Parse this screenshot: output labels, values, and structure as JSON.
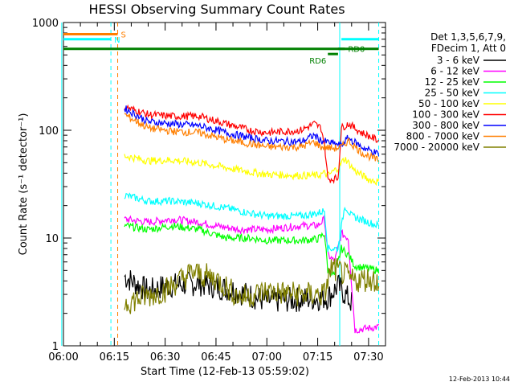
{
  "chart_data": {
    "type": "line",
    "title": "HESSI Observing Summary Count Rates",
    "xlabel": "Start Time (12-Feb-13 05:59:02)",
    "ylabel": "Count Rate (s⁻¹ detector⁻¹)",
    "yscale": "log",
    "xlim": [
      "06:00",
      "07:35"
    ],
    "ylim": [
      1,
      1000
    ],
    "xticks": [
      "06:00",
      "06:15",
      "06:30",
      "06:45",
      "07:00",
      "07:15",
      "07:30"
    ],
    "yticks": [
      "1",
      "10",
      "100",
      "1000"
    ],
    "legend_header": [
      "Det 1,3,5,6,7,9,",
      "FDecim 1, Att 0"
    ],
    "legend_placement": "right",
    "timestamp": "12-Feb-2013 10:44",
    "flags": [
      {
        "label": "S",
        "color": "#ff7f00",
        "x": [
          "06:00",
          "06:16"
        ],
        "y": 780
      },
      {
        "label": "N",
        "color": "#00ffff",
        "x": [
          "06:00",
          "06:14"
        ],
        "y": 700
      },
      {
        "label": "",
        "color": "#00ffff",
        "x": [
          "07:22",
          "07:33"
        ],
        "y": 700
      },
      {
        "label": "RD6",
        "color": "#008000",
        "x": [
          "07:18",
          "07:21"
        ],
        "y": 510
      },
      {
        "label": "RD0",
        "color": "#008000",
        "x": [
          "07:21",
          "07:23"
        ],
        "y": 570
      },
      {
        "label": "",
        "color": "#008000",
        "x": [
          "06:00",
          "07:33"
        ],
        "y": 570
      }
    ],
    "vlines": [
      {
        "x": "06:14",
        "color": "#00ffff",
        "style": "dashed"
      },
      {
        "x": "06:16",
        "color": "#ff7f00",
        "style": "dashed"
      },
      {
        "x": "07:21.5",
        "color": "#00ffff",
        "style": "solid"
      },
      {
        "x": "07:33",
        "color": "#00ffff",
        "style": "dashed"
      },
      {
        "x": "05:59.5",
        "color": "#00ffff",
        "style": "solid"
      }
    ],
    "series": [
      {
        "name": "3 - 6 keV",
        "color": "#000000",
        "points": [
          [
            "06:18",
            4.4
          ],
          [
            "06:25",
            3.2
          ],
          [
            "06:30",
            3.6
          ],
          [
            "06:40",
            3.8
          ],
          [
            "06:50",
            3.3
          ],
          [
            "07:00",
            2.6
          ],
          [
            "07:10",
            2.7
          ],
          [
            "07:18",
            2.8
          ],
          [
            "07:21",
            3.6
          ],
          [
            "07:25",
            2.5
          ]
        ]
      },
      {
        "name": "6 - 12 keV",
        "color": "#ff00ff",
        "points": [
          [
            "06:18",
            15
          ],
          [
            "06:25",
            14
          ],
          [
            "06:32",
            15
          ],
          [
            "06:40",
            14
          ],
          [
            "06:45",
            13
          ],
          [
            "06:52",
            12
          ],
          [
            "07:00",
            12
          ],
          [
            "07:10",
            13
          ],
          [
            "07:15",
            13
          ],
          [
            "07:17",
            15
          ],
          [
            "07:18",
            7
          ],
          [
            "07:20",
            6
          ],
          [
            "07:22",
            11
          ],
          [
            "07:24",
            10
          ],
          [
            "07:26",
            1.4
          ],
          [
            "07:33",
            1.5
          ]
        ]
      },
      {
        "name": "12 - 25 keV",
        "color": "#00ff00",
        "points": [
          [
            "06:18",
            13
          ],
          [
            "06:25",
            12
          ],
          [
            "06:32",
            13
          ],
          [
            "06:40",
            12
          ],
          [
            "06:48",
            10
          ],
          [
            "06:55",
            10
          ],
          [
            "07:00",
            9.5
          ],
          [
            "07:10",
            9.5
          ],
          [
            "07:15",
            9.8
          ],
          [
            "07:17",
            11
          ],
          [
            "07:18",
            5
          ],
          [
            "07:20",
            4.5
          ],
          [
            "07:22",
            8
          ],
          [
            "07:24",
            7
          ],
          [
            "07:26",
            5.5
          ],
          [
            "07:33",
            5
          ]
        ]
      },
      {
        "name": "25 - 50 keV",
        "color": "#00ffff",
        "points": [
          [
            "06:18",
            25
          ],
          [
            "06:25",
            22
          ],
          [
            "06:32",
            22
          ],
          [
            "06:40",
            21
          ],
          [
            "06:48",
            19
          ],
          [
            "06:55",
            17
          ],
          [
            "07:00",
            16
          ],
          [
            "07:10",
            16
          ],
          [
            "07:15",
            17
          ],
          [
            "07:17",
            18
          ],
          [
            "07:18",
            8
          ],
          [
            "07:21",
            8
          ],
          [
            "07:23",
            20
          ],
          [
            "07:25",
            16
          ],
          [
            "07:30",
            14
          ],
          [
            "07:33",
            13
          ]
        ]
      },
      {
        "name": "50 - 100 keV",
        "color": "#ffff00",
        "points": [
          [
            "06:18",
            58
          ],
          [
            "06:25",
            52
          ],
          [
            "06:32",
            53
          ],
          [
            "06:40",
            50
          ],
          [
            "06:48",
            45
          ],
          [
            "06:55",
            41
          ],
          [
            "07:00",
            39
          ],
          [
            "07:10",
            38
          ],
          [
            "07:15",
            38
          ],
          [
            "07:17",
            40
          ],
          [
            "07:18",
            38
          ],
          [
            "07:21",
            45
          ],
          [
            "07:23",
            55
          ],
          [
            "07:26",
            42
          ],
          [
            "07:30",
            35
          ],
          [
            "07:33",
            33
          ]
        ]
      },
      {
        "name": "100 - 300 keV",
        "color": "#ff0000",
        "points": [
          [
            "06:18",
            165
          ],
          [
            "06:25",
            140
          ],
          [
            "06:32",
            135
          ],
          [
            "06:40",
            135
          ],
          [
            "06:48",
            115
          ],
          [
            "06:55",
            100
          ],
          [
            "07:00",
            95
          ],
          [
            "07:10",
            100
          ],
          [
            "07:14",
            115
          ],
          [
            "07:16",
            105
          ],
          [
            "07:17",
            75
          ],
          [
            "07:18",
            35
          ],
          [
            "07:21",
            36
          ],
          [
            "07:22",
            105
          ],
          [
            "07:24",
            115
          ],
          [
            "07:28",
            95
          ],
          [
            "07:33",
            80
          ]
        ]
      },
      {
        "name": "300 - 800 keV",
        "color": "#0000ff",
        "points": [
          [
            "06:18",
            160
          ],
          [
            "06:25",
            120
          ],
          [
            "06:32",
            115
          ],
          [
            "06:40",
            110
          ],
          [
            "06:48",
            95
          ],
          [
            "06:55",
            85
          ],
          [
            "07:00",
            80
          ],
          [
            "07:10",
            78
          ],
          [
            "07:14",
            90
          ],
          [
            "07:16",
            80
          ],
          [
            "07:20",
            75
          ],
          [
            "07:22",
            72
          ],
          [
            "07:24",
            85
          ],
          [
            "07:28",
            70
          ],
          [
            "07:33",
            60
          ]
        ]
      },
      {
        "name": "800 - 7000 keV",
        "color": "#ff7f00",
        "points": [
          [
            "06:18",
            140
          ],
          [
            "06:25",
            105
          ],
          [
            "06:32",
            98
          ],
          [
            "06:40",
            95
          ],
          [
            "06:48",
            82
          ],
          [
            "06:55",
            75
          ],
          [
            "07:00",
            70
          ],
          [
            "07:10",
            70
          ],
          [
            "07:14",
            78
          ],
          [
            "07:16",
            70
          ],
          [
            "07:20",
            68
          ],
          [
            "07:22",
            70
          ],
          [
            "07:24",
            80
          ],
          [
            "07:28",
            62
          ],
          [
            "07:33",
            52
          ]
        ]
      },
      {
        "name": "7000 - 20000 keV",
        "color": "#808000",
        "points": [
          [
            "06:18",
            2.5
          ],
          [
            "06:25",
            2.9
          ],
          [
            "06:30",
            3.3
          ],
          [
            "06:38",
            4.8
          ],
          [
            "06:45",
            4.2
          ],
          [
            "06:52",
            2.8
          ],
          [
            "07:00",
            3.2
          ],
          [
            "07:10",
            3.0
          ],
          [
            "07:17",
            3.0
          ],
          [
            "07:19",
            5.3
          ],
          [
            "07:22",
            4.8
          ],
          [
            "07:25",
            4.0
          ],
          [
            "07:30",
            4.2
          ],
          [
            "07:33",
            4.0
          ]
        ]
      }
    ]
  }
}
